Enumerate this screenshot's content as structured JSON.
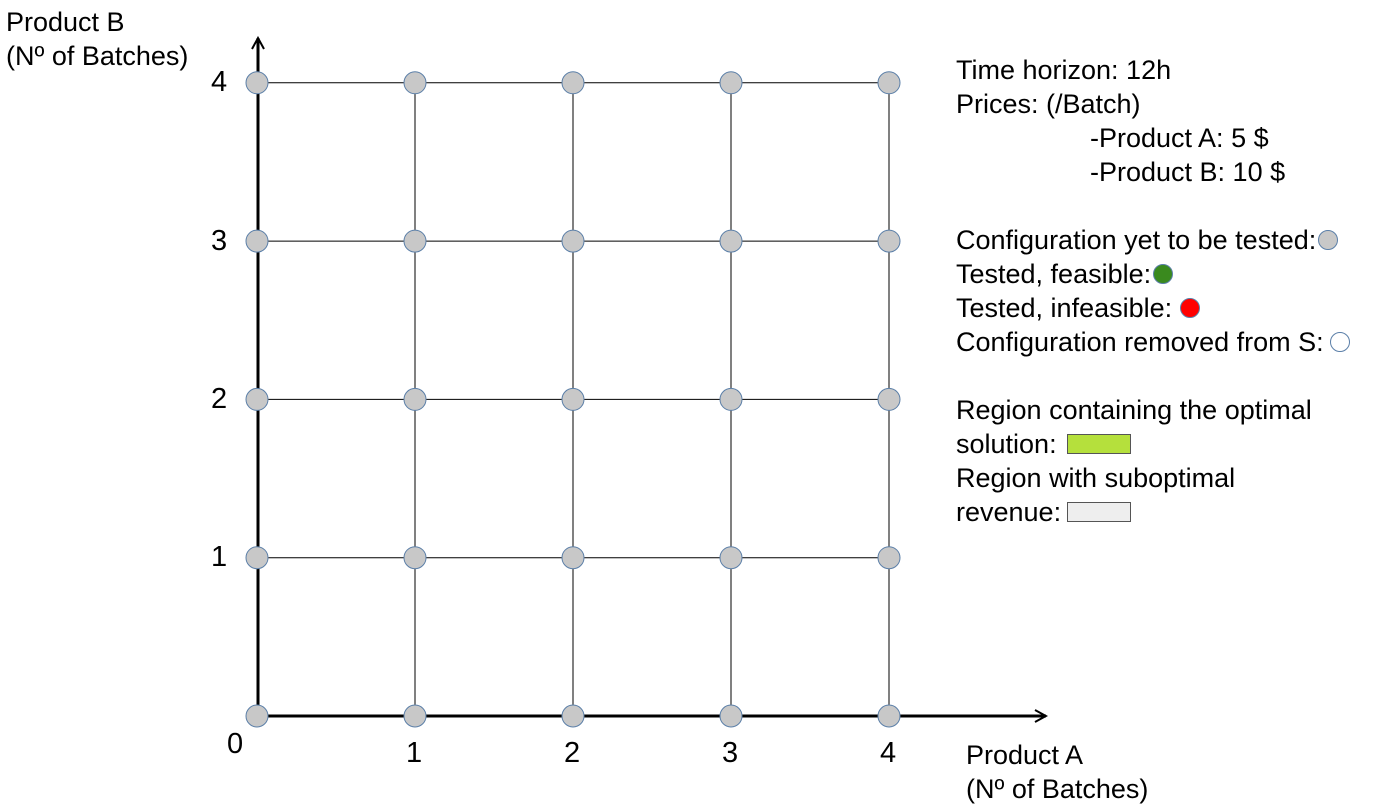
{
  "axes": {
    "y_title_line1": "Product B",
    "y_title_line2": "(Nº of Batches)",
    "x_title_line1": "Product A",
    "x_title_line2": "(Nº of Batches)",
    "origin_label": "0",
    "x_ticks": [
      "1",
      "2",
      "3",
      "4"
    ],
    "y_ticks": [
      "1",
      "2",
      "3",
      "4"
    ]
  },
  "grid": {
    "a_values": [
      0,
      1,
      2,
      3,
      4
    ],
    "b_values": [
      0,
      1,
      2,
      3,
      4
    ],
    "node_state": "untested"
  },
  "legend": {
    "time_horizon": "Time horizon: 12h",
    "prices_title": "Prices: (/Batch)",
    "price_a": "-Product A: 5 $",
    "price_b": "-Product B: 10 $",
    "untested_label": "Configuration yet to be tested:",
    "feasible_label": "Tested, feasible:",
    "infeasible_label": "Tested, infeasible:",
    "removed_label": "Configuration removed from S:",
    "optimal_line1": "Region containing the optimal",
    "optimal_line2": "solution:",
    "suboptimal_line1": "Region with suboptimal",
    "suboptimal_line2": "revenue:"
  },
  "colors": {
    "untested_fill": "#c8c8c8",
    "node_stroke": "#5b7fa8",
    "feasible": "#3a8a1e",
    "infeasible": "#ff0000",
    "removed_fill": "#ffffff",
    "optimal_region": "#b5e03c",
    "suboptimal_region": "#eeeeee"
  }
}
